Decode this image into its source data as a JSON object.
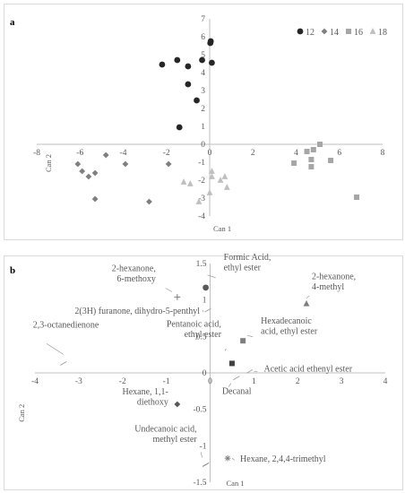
{
  "panels": [
    {
      "letter": "a"
    },
    {
      "letter": "b"
    }
  ],
  "chart_data": [
    {
      "type": "scatter",
      "panel": "a",
      "xlabel": "Can 1",
      "ylabel": "Can 2",
      "xlim": [
        -8,
        8
      ],
      "ylim": [
        -4,
        7
      ],
      "xticks": [
        -8,
        -6,
        -4,
        -2,
        0,
        2,
        4,
        6,
        8
      ],
      "yticks": [
        -4,
        -3,
        -2,
        -1,
        0,
        1,
        2,
        3,
        4,
        5,
        6,
        7
      ],
      "grid": false,
      "legend_position": "top-right",
      "series": [
        {
          "name": "12",
          "marker": "circle",
          "color": "#262626",
          "points": [
            [
              0.05,
              5.75
            ],
            [
              0.03,
              5.65
            ],
            [
              -2.2,
              4.45
            ],
            [
              -1.5,
              4.7
            ],
            [
              -0.35,
              4.7
            ],
            [
              0.1,
              4.55
            ],
            [
              -1.0,
              4.35
            ],
            [
              -1.0,
              3.35
            ],
            [
              -0.6,
              2.45
            ],
            [
              -1.4,
              0.95
            ]
          ]
        },
        {
          "name": "14",
          "marker": "diamond",
          "color": "#7f7f7f",
          "points": [
            [
              -6.1,
              -1.1
            ],
            [
              -5.9,
              -1.5
            ],
            [
              -5.6,
              -1.8
            ],
            [
              -5.3,
              -1.6
            ],
            [
              -4.8,
              -0.6
            ],
            [
              -3.9,
              -1.1
            ],
            [
              -1.9,
              -1.1
            ],
            [
              -5.3,
              -3.05
            ],
            [
              -2.8,
              -3.2
            ]
          ]
        },
        {
          "name": "16",
          "marker": "square",
          "color": "#a6a6a6",
          "points": [
            [
              4.5,
              -0.4
            ],
            [
              4.8,
              -0.3
            ],
            [
              5.1,
              0.0
            ],
            [
              3.9,
              -1.05
            ],
            [
              4.7,
              -0.85
            ],
            [
              4.7,
              -1.25
            ],
            [
              5.6,
              -0.9
            ],
            [
              6.8,
              -2.95
            ]
          ]
        },
        {
          "name": "18",
          "marker": "triangle",
          "color": "#bfbfbf",
          "points": [
            [
              0.1,
              -1.5
            ],
            [
              0.1,
              -1.8
            ],
            [
              0.5,
              -2.0
            ],
            [
              0.7,
              -1.8
            ],
            [
              0.8,
              -2.4
            ],
            [
              -1.2,
              -2.1
            ],
            [
              -0.9,
              -2.2
            ],
            [
              0.0,
              -2.7
            ],
            [
              -0.5,
              -3.2
            ]
          ]
        }
      ]
    },
    {
      "type": "scatter",
      "panel": "b",
      "xlabel": "Can 1",
      "ylabel": "Can 2",
      "xlim": [
        -4,
        4
      ],
      "ylim": [
        -1.5,
        1.5
      ],
      "xticks": [
        -4,
        -3,
        -2,
        -1,
        0,
        1,
        2,
        3,
        4
      ],
      "yticks": [
        -1.5,
        -1,
        -0.5,
        0,
        0.5,
        1,
        1.5
      ],
      "yticklabels": [
        "-1.5",
        "-1",
        "-0.5",
        "0",
        "0.5",
        "1",
        "1.5"
      ],
      "grid": false,
      "points": [
        {
          "label": "Formic Acid,\nethyl ester",
          "x": -0.1,
          "y": 1.17,
          "marker": "circle",
          "color": "#595959"
        },
        {
          "label": "2-hexanone,\n6-methoxy",
          "x": -0.75,
          "y": 1.04,
          "marker": "plus",
          "color": "#7f7f7f"
        },
        {
          "label": "2-hexanone,\n4-methyl",
          "x": 2.2,
          "y": 0.95,
          "marker": "triangle",
          "color": "#7f7f7f"
        },
        {
          "label": "2(3H) furanone, dihydro-5-penthyl",
          "x": -0.05,
          "y": 0.86,
          "marker": "dash",
          "color": "#a6a6a6"
        },
        {
          "label": "Hexadecanoic\nacid, ethyl ester",
          "x": 0.75,
          "y": 0.44,
          "marker": "square",
          "color": "#7f7f7f"
        },
        {
          "label": "2,3-octanedienone",
          "x": -3.35,
          "y": 0.13,
          "marker": "dash",
          "color": "#a6a6a6"
        },
        {
          "label": "Pentanoic acid,\nethyl ester",
          "x": 0.5,
          "y": 0.13,
          "marker": "square",
          "color": "#404040"
        },
        {
          "label": "Acetic acid ethenyl ester",
          "x": 0.9,
          "y": 0.02,
          "marker": "dash",
          "color": "#a6a6a6"
        },
        {
          "label": "Decanal",
          "x": 0.6,
          "y": -0.07,
          "marker": "dash",
          "color": "#a6a6a6"
        },
        {
          "label": "Hexane, 1,1-\ndiethoxy",
          "x": -0.75,
          "y": -0.43,
          "marker": "diamond",
          "color": "#595959"
        },
        {
          "label": "Hexane, 2,4,4-trimethyl",
          "x": 0.4,
          "y": -1.17,
          "marker": "star",
          "color": "#7f7f7f"
        },
        {
          "label": "Undecanoic acid,\nmethyl ester",
          "x": -0.1,
          "y": -1.26,
          "marker": "dash",
          "color": "#7f7f7f"
        }
      ]
    }
  ]
}
